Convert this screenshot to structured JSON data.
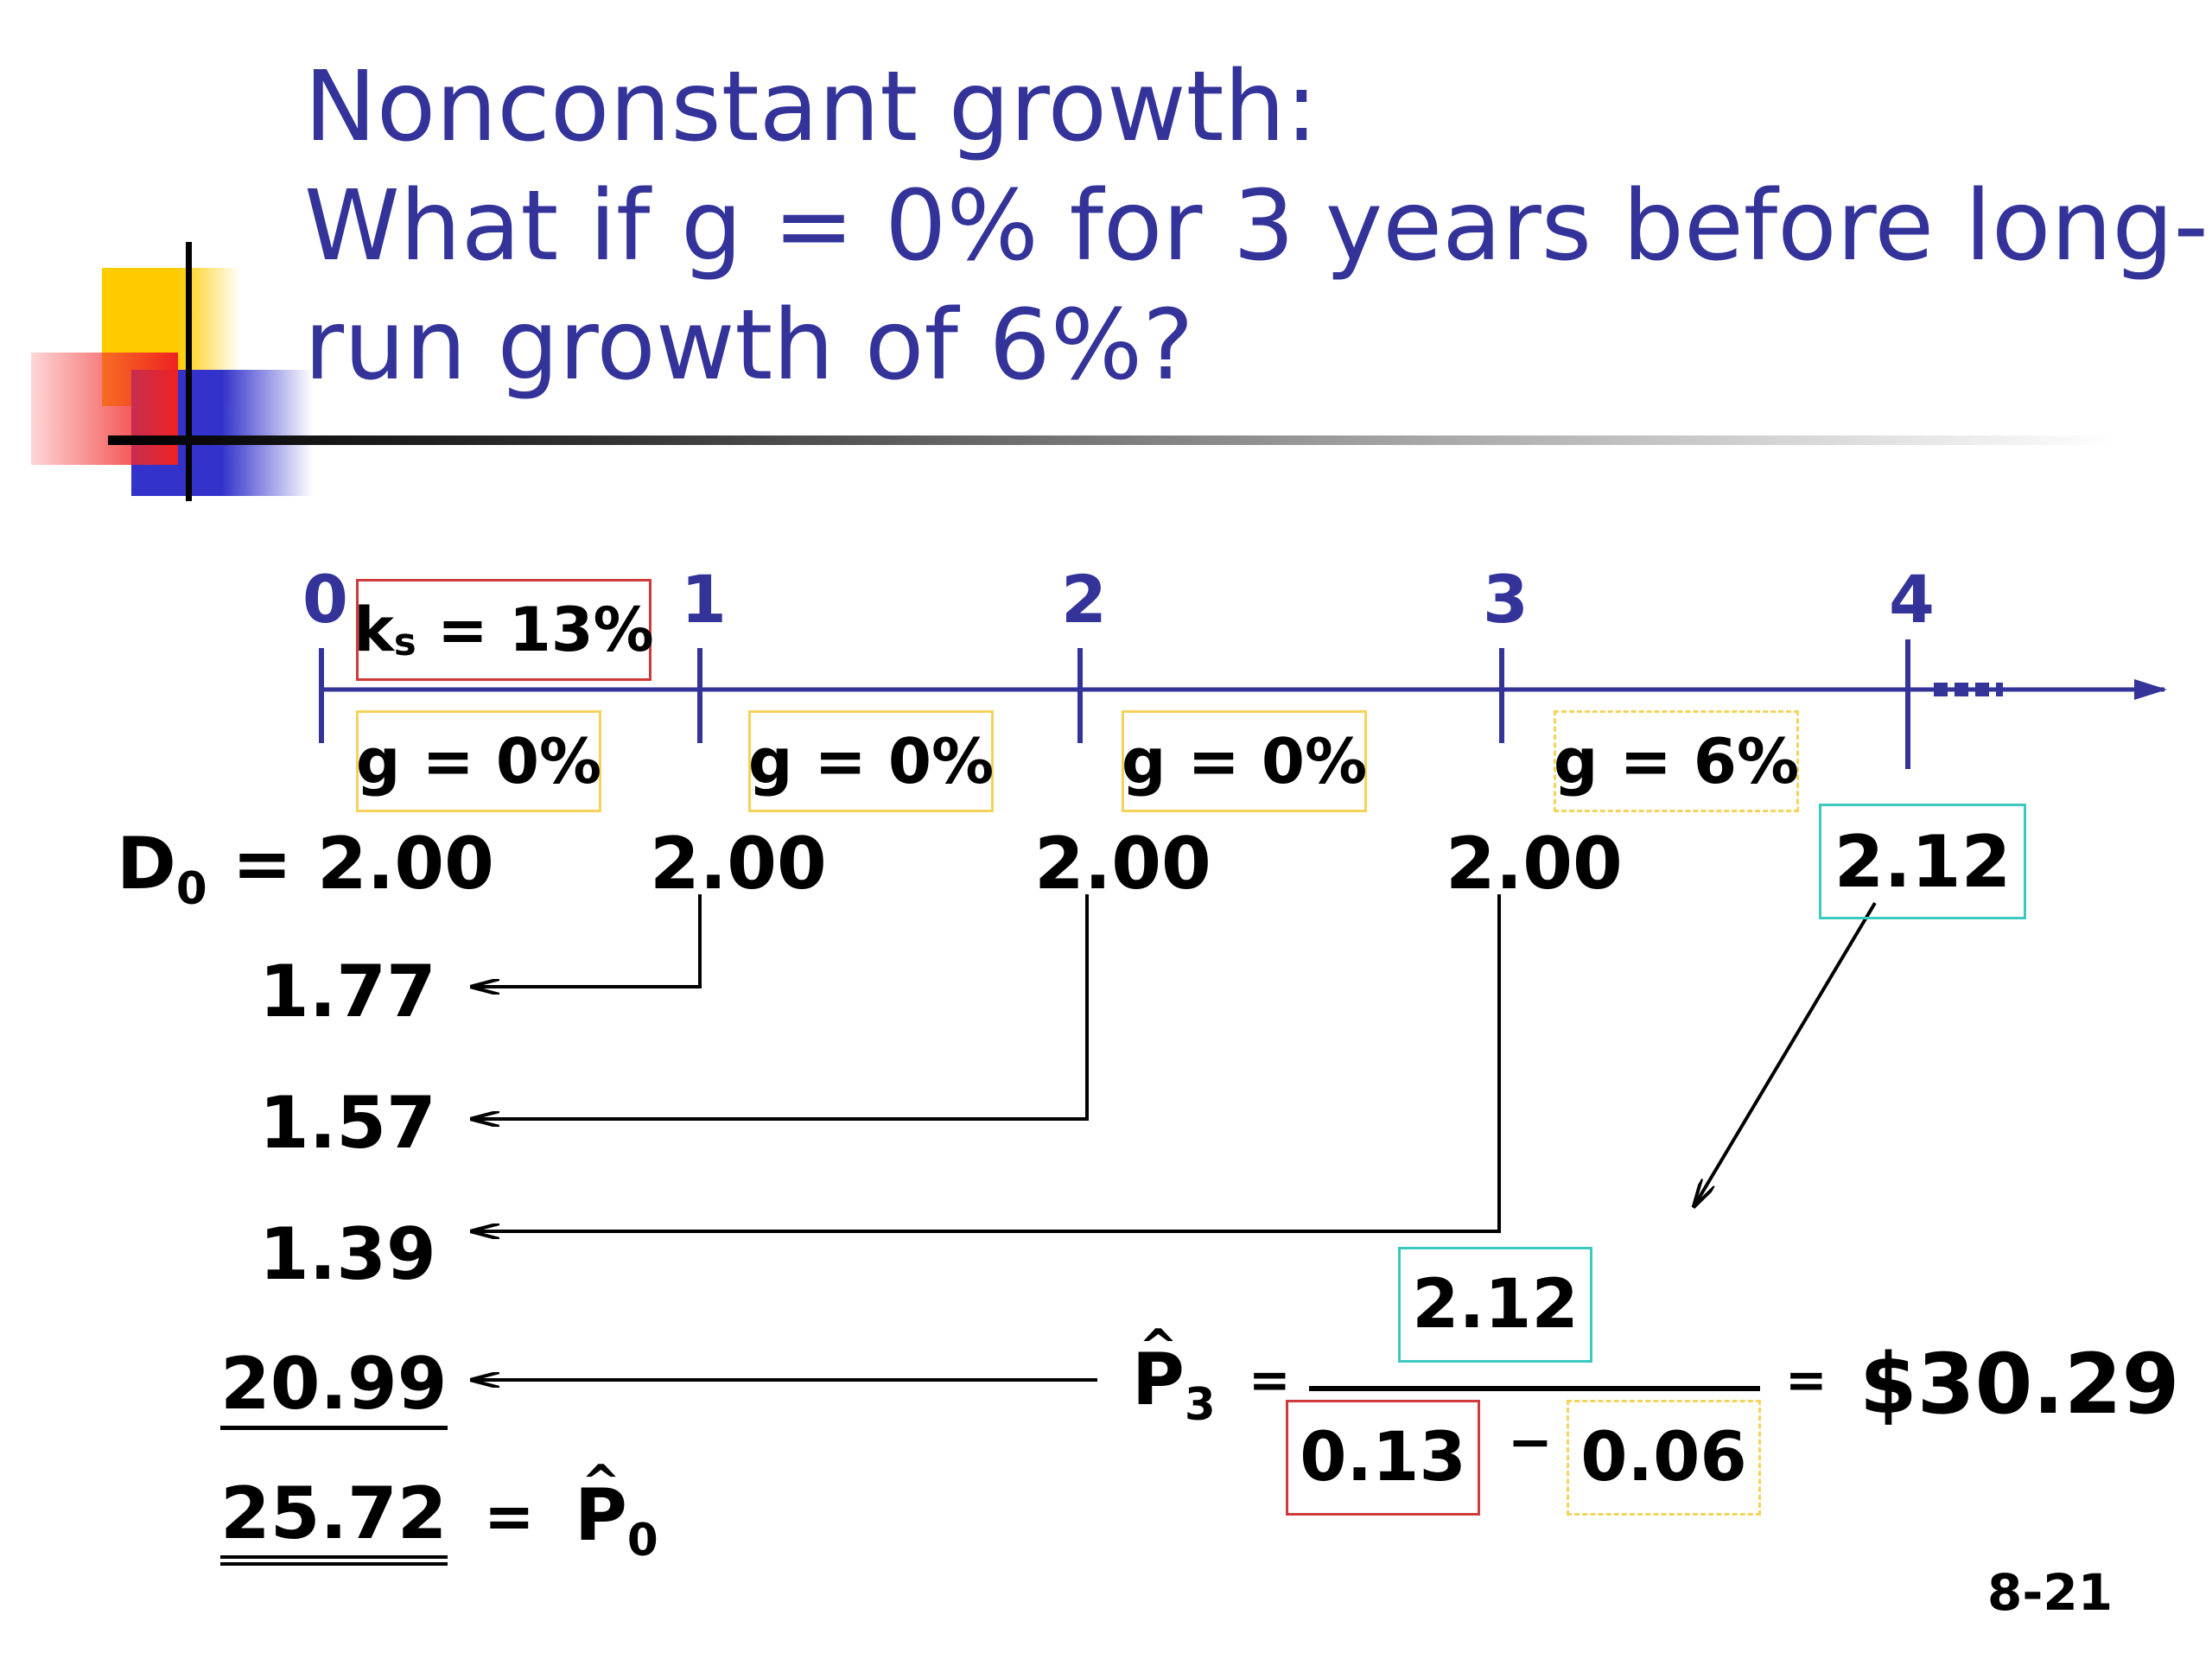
{
  "title": {
    "line1": "Nonconstant growth:",
    "line2": "What if g = 0% for 3 years before long-",
    "line3": "run growth of 6%?"
  },
  "timeline": {
    "periods": [
      "0",
      "1",
      "2",
      "3",
      "4"
    ],
    "rate_box": {
      "k": "k",
      "sub": "s",
      "rest": " = 13%"
    },
    "growth_boxes": [
      "g = 0%",
      "g = 0%",
      "g = 0%",
      "g = 6%"
    ],
    "continuation": "..."
  },
  "dividends": {
    "d0_label": "D",
    "d0_sub": "0",
    "d0_value": " = 2.00",
    "values": [
      "2.00",
      "2.00",
      "2.00",
      "2.12"
    ]
  },
  "present_values": [
    "1.77",
    "1.57",
    "1.39",
    "20.99"
  ],
  "total": {
    "value": "25.72",
    "eq": "=",
    "p": "P",
    "sub": "0"
  },
  "formula": {
    "p": "P",
    "sub": "3",
    "eq1": "=",
    "numerator": "2.12",
    "denom_a": "0.13",
    "minus": "−",
    "denom_b": "0.06",
    "eq2": "=",
    "result": "$30.29"
  },
  "slide_number": "8-21",
  "colors": {
    "title": "#33339a",
    "timeline": "#33339a",
    "yellow": "#f5d35a",
    "red": "#d03a3a",
    "cyan": "#3cc9c0"
  }
}
